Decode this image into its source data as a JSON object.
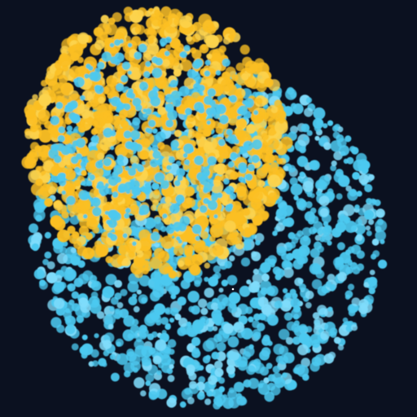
{
  "scene": {
    "background_color": "#0b1120",
    "clusters": [
      {
        "name": "blue-cluster",
        "color": "#4cc9f0",
        "highlight": "#7fdcfb",
        "particle_count": 1400
      },
      {
        "name": "yellow-cluster",
        "color": "#fbbf24",
        "highlight": "#fcd34d",
        "particle_count": 1100
      }
    ],
    "cursor_dot_color": "#ffffff"
  }
}
